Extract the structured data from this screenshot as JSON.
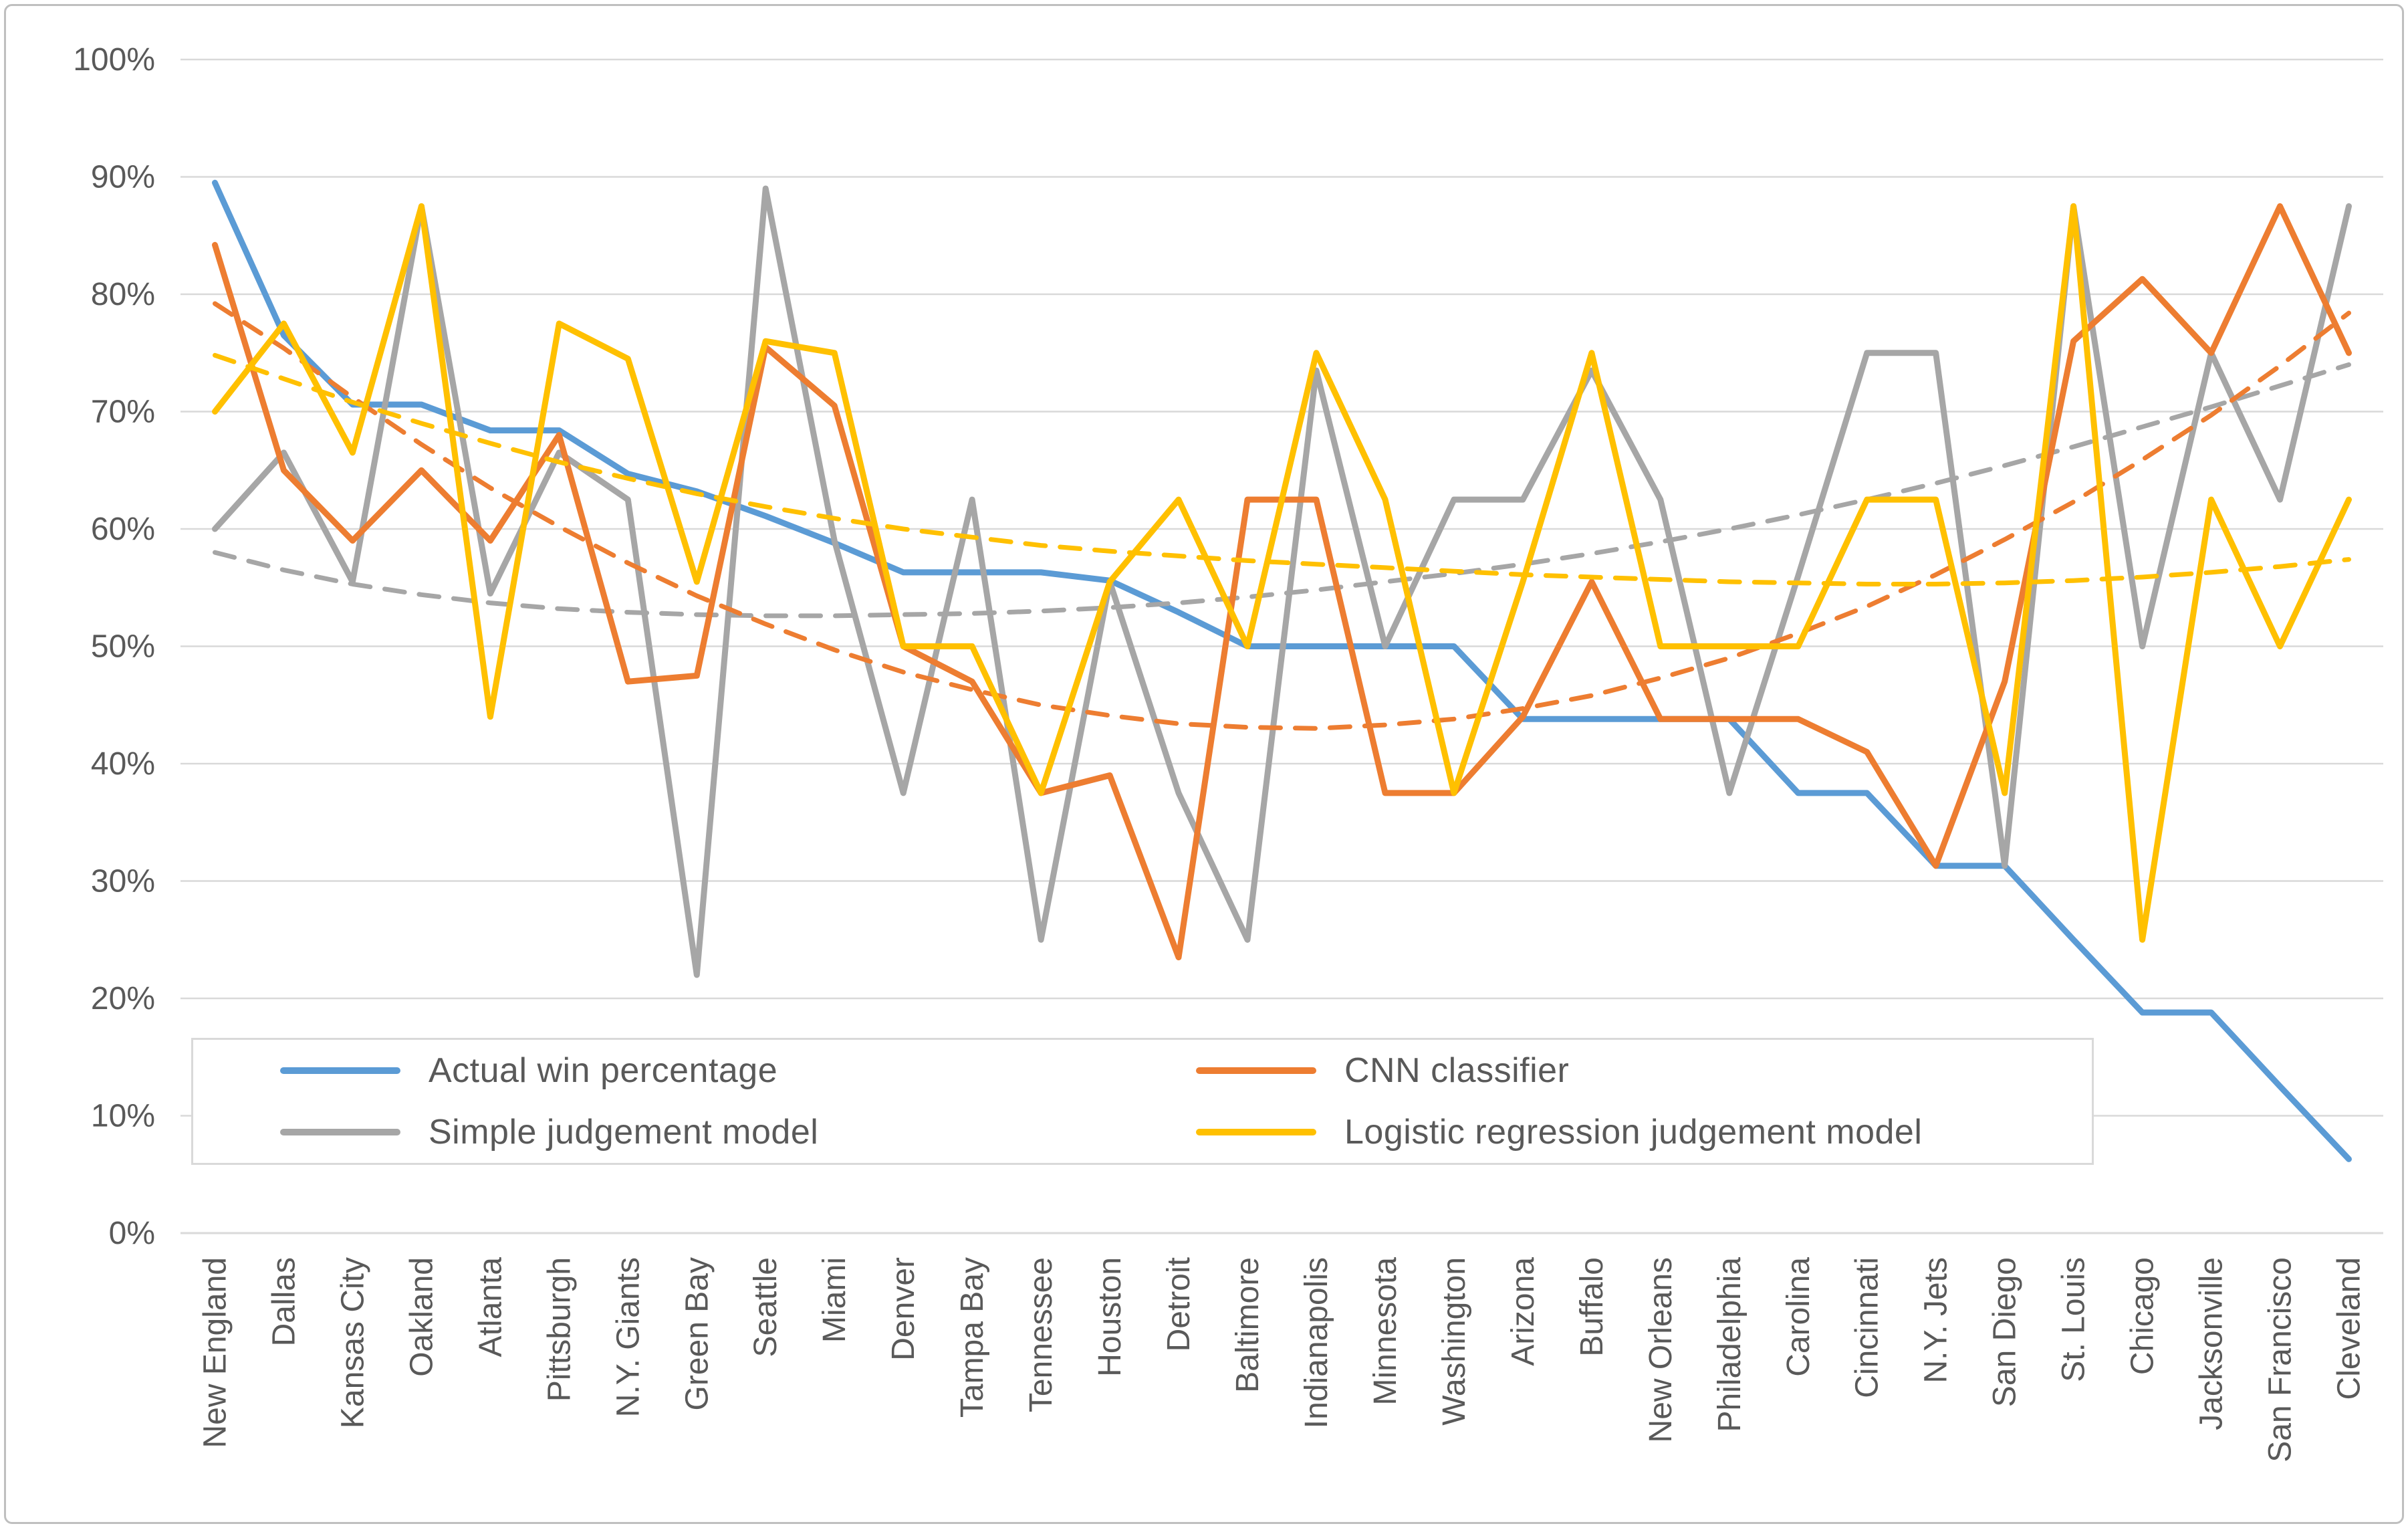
{
  "chart_data": {
    "type": "line",
    "title": "",
    "xlabel": "",
    "ylabel": "",
    "ylim": [
      0,
      100
    ],
    "grid": true,
    "legend_position": "inside-bottom-left",
    "y_tick_labels": [
      "0%",
      "10%",
      "20%",
      "30%",
      "40%",
      "50%",
      "60%",
      "70%",
      "80%",
      "90%",
      "100%"
    ],
    "categories": [
      "New England",
      "Dallas",
      "Kansas City",
      "Oakland",
      "Atlanta",
      "Pittsburgh",
      "N.Y. Giants",
      "Green Bay",
      "Seattle",
      "Miami",
      "Denver",
      "Tampa Bay",
      "Tennessee",
      "Houston",
      "Detroit",
      "Baltimore",
      "Indianapolis",
      "Minnesota",
      "Washington",
      "Arizona",
      "Buffalo",
      "New Orleans",
      "Philadelphia",
      "Carolina",
      "Cincinnati",
      "N.Y. Jets",
      "San Diego",
      "St. Louis",
      "Chicago",
      "Jacksonville",
      "San Francisco",
      "Cleveland"
    ],
    "series": [
      {
        "name": "Actual win percentage",
        "color": "#5B9BD5",
        "style": "solid",
        "values": [
          89.5,
          76.5,
          70.6,
          70.6,
          68.4,
          68.4,
          64.7,
          63.2,
          61.1,
          58.8,
          56.3,
          56.3,
          56.3,
          55.6,
          52.9,
          50.0,
          50.0,
          50.0,
          50.0,
          43.8,
          43.8,
          43.8,
          43.8,
          37.5,
          37.5,
          31.3,
          31.3,
          25.0,
          18.8,
          18.8,
          12.5,
          6.3
        ]
      },
      {
        "name": "Simple judgement model",
        "color": "#A6A6A6",
        "style": "solid",
        "values": [
          60.0,
          66.5,
          55.5,
          87.5,
          54.5,
          66.5,
          62.5,
          22.0,
          89.0,
          59.0,
          37.5,
          62.5,
          25.0,
          55.5,
          37.5,
          25.0,
          73.5,
          50.0,
          62.5,
          62.5,
          73.5,
          62.5,
          37.5,
          56.0,
          75.0,
          75.0,
          31.3,
          87.5,
          50.0,
          75.0,
          62.5,
          87.5
        ]
      },
      {
        "name": "CNN classifier",
        "color": "#ED7D31",
        "style": "solid",
        "values": [
          84.2,
          65.0,
          59.0,
          65.0,
          59.0,
          68.0,
          47.0,
          47.5,
          75.5,
          70.5,
          50.0,
          47.0,
          37.5,
          39.0,
          23.5,
          62.5,
          62.5,
          37.5,
          37.5,
          44.0,
          55.5,
          43.8,
          43.8,
          43.8,
          41.0,
          31.3,
          47.0,
          76.0,
          81.3,
          75.0,
          87.5,
          75.0
        ]
      },
      {
        "name": "Logistic regression judgement model",
        "color": "#FFC000",
        "style": "solid",
        "values": [
          70.0,
          77.5,
          66.5,
          87.5,
          44.0,
          77.5,
          74.5,
          55.5,
          76.0,
          75.0,
          50.0,
          50.0,
          37.5,
          55.5,
          62.5,
          50.0,
          75.0,
          62.5,
          37.5,
          55.5,
          75.0,
          50.0,
          50.0,
          50.0,
          62.5,
          62.5,
          37.5,
          87.5,
          25.0,
          62.5,
          50.0,
          62.5
        ]
      }
    ],
    "trend_series": [
      {
        "name": "Simple judgement model trend",
        "color": "#A6A6A6",
        "style": "dashed",
        "values": [
          58.0,
          56.5,
          55.3,
          54.4,
          53.7,
          53.2,
          52.9,
          52.7,
          52.6,
          52.6,
          52.7,
          52.8,
          53.0,
          53.3,
          53.7,
          54.2,
          54.8,
          55.5,
          56.2,
          57.0,
          57.9,
          58.9,
          60.0,
          61.2,
          62.5,
          63.9,
          65.4,
          67.0,
          68.7,
          70.4,
          72.2,
          74.0
        ]
      },
      {
        "name": "CNN classifier trend",
        "color": "#ED7D31",
        "style": "dashed",
        "values": [
          79.2,
          75.4,
          71.2,
          67.2,
          63.5,
          60.2,
          57.1,
          54.3,
          51.9,
          49.7,
          47.8,
          46.3,
          45.0,
          44.1,
          43.4,
          43.1,
          43.0,
          43.3,
          43.8,
          44.7,
          45.8,
          47.3,
          49.0,
          51.1,
          53.4,
          56.1,
          59.1,
          62.3,
          65.9,
          69.7,
          73.9,
          78.4
        ]
      },
      {
        "name": "Logistic regression judgement model trend",
        "color": "#FFC000",
        "style": "dashed",
        "values": [
          74.8,
          72.8,
          70.8,
          69.0,
          67.3,
          65.7,
          64.3,
          63.0,
          61.9,
          60.9,
          60.0,
          59.3,
          58.6,
          58.1,
          57.7,
          57.3,
          57.0,
          56.7,
          56.4,
          56.1,
          55.9,
          55.7,
          55.5,
          55.4,
          55.3,
          55.3,
          55.4,
          55.6,
          55.9,
          56.3,
          56.8,
          57.4
        ]
      }
    ]
  },
  "legend": {
    "items": [
      {
        "label": "Actual win percentage",
        "color": "#5B9BD5"
      },
      {
        "label": "CNN classifier",
        "color": "#ED7D31"
      },
      {
        "label": "Simple judgement model",
        "color": "#A6A6A6"
      },
      {
        "label": "Logistic regression judgement model",
        "color": "#FFC000"
      }
    ]
  },
  "style": {
    "gridline_color": "#D9D9D9",
    "axis_label_color": "#595959",
    "background": "#FFFFFF"
  }
}
